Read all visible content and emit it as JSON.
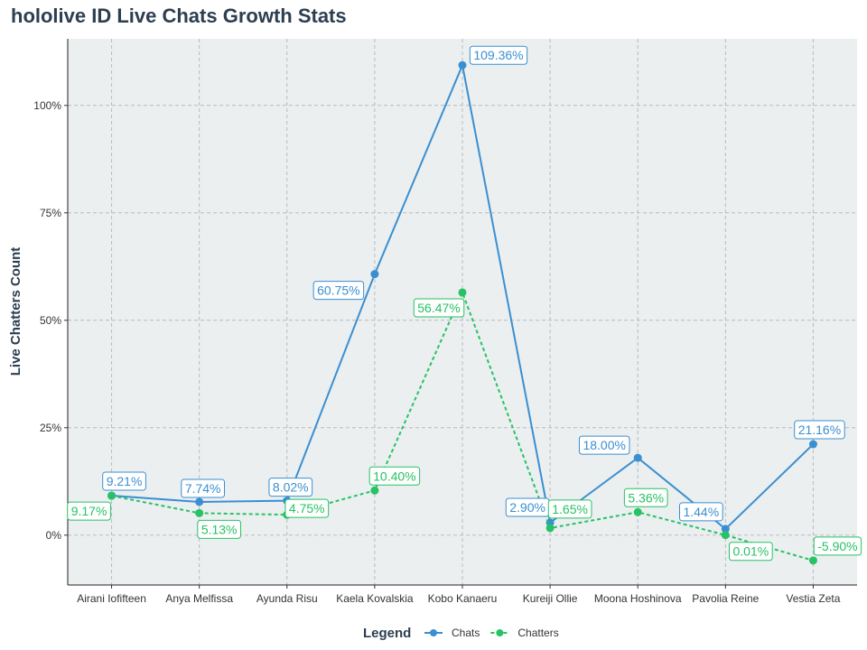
{
  "title": "hololive ID Live Chats Growth Stats",
  "chart_data": {
    "type": "line",
    "title": "hololive ID Live Chats Growth Stats",
    "xlabel": "",
    "ylabel": "Live Chatters Count",
    "categories": [
      "Airani Iofifteen",
      "Anya Melfissa",
      "Ayunda Risu",
      "Kaela Kovalskia",
      "Kobo Kanaeru",
      "Kureiji Ollie",
      "Moona Hoshinova",
      "Pavolia Reine",
      "Vestia Zeta"
    ],
    "y_ticks": [
      0,
      25,
      50,
      75,
      100
    ],
    "y_tick_labels": [
      "0%",
      "25%",
      "50%",
      "75%",
      "100%"
    ],
    "ylim": [
      -11.6,
      115.5
    ],
    "grid": true,
    "legend": {
      "title": "Legend",
      "position": "bottom"
    },
    "series": [
      {
        "name": "Chats",
        "color": "#3a8fd1",
        "line_style": "solid",
        "values": [
          9.21,
          7.74,
          8.02,
          60.75,
          109.36,
          2.9,
          18.0,
          1.44,
          21.16
        ],
        "labels": [
          "9.21%",
          "7.74%",
          "8.02%",
          "60.75%",
          "109.36%",
          "2.90%",
          "18.00%",
          "1.44%",
          "21.16%"
        ]
      },
      {
        "name": "Chatters",
        "color": "#27c265",
        "line_style": "dashed",
        "values": [
          9.17,
          5.13,
          4.75,
          10.4,
          56.47,
          1.65,
          5.36,
          0.01,
          -5.9
        ],
        "labels": [
          "9.17%",
          "5.13%",
          "4.75%",
          "10.40%",
          "56.47%",
          "1.65%",
          "5.36%",
          "0.01%",
          "-5.90%"
        ]
      }
    ]
  }
}
